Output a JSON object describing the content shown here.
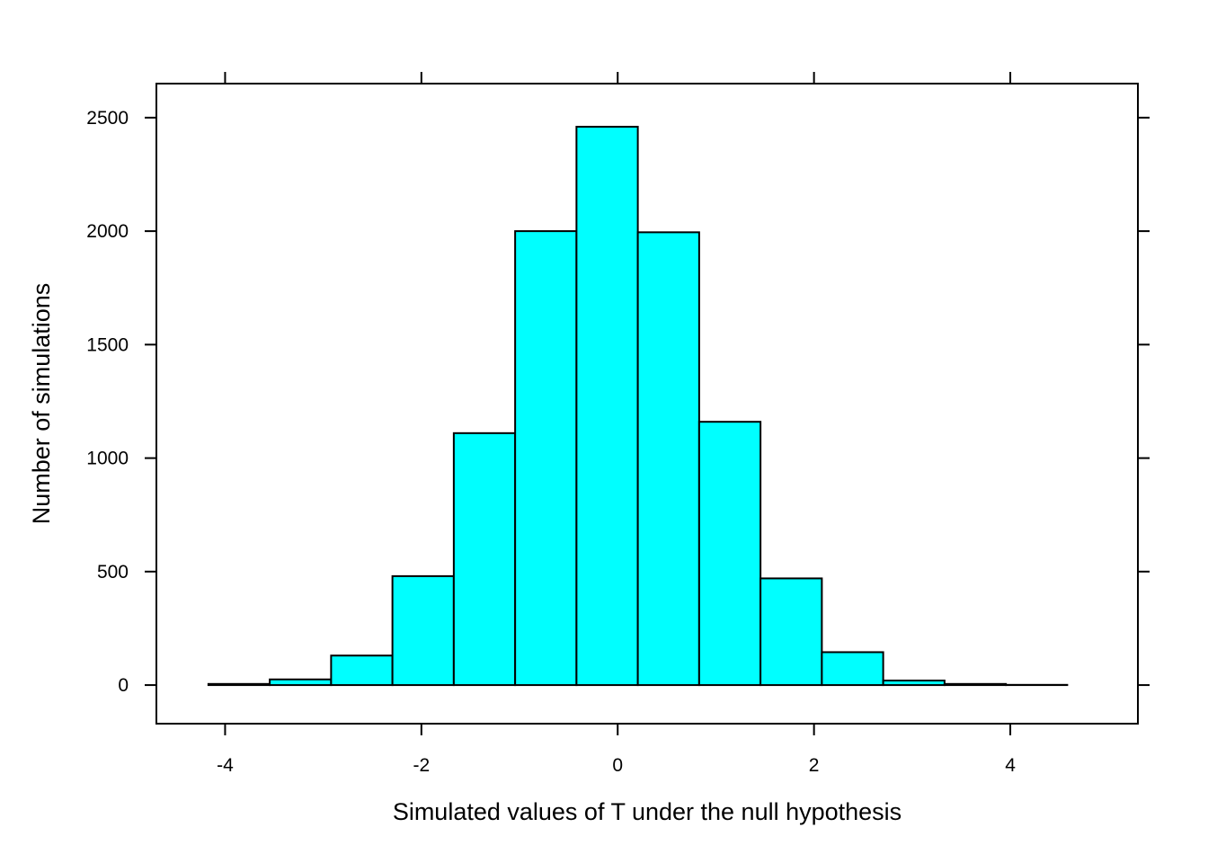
{
  "chart_data": {
    "type": "bar",
    "xlabel": "Simulated values of T under the null hypothesis",
    "ylabel": "Number of simulations",
    "xlim": [
      -4.7,
      5.3
    ],
    "ylim": [
      -170,
      2650
    ],
    "x_ticks": [
      -4,
      -2,
      0,
      2,
      4
    ],
    "y_ticks": [
      0,
      500,
      1000,
      1500,
      2000,
      2500
    ],
    "bins": [
      {
        "x0": -4.17,
        "x1": -3.545,
        "count": 5
      },
      {
        "x0": -3.545,
        "x1": -2.92,
        "count": 25
      },
      {
        "x0": -2.92,
        "x1": -2.295,
        "count": 130
      },
      {
        "x0": -2.295,
        "x1": -1.67,
        "count": 480
      },
      {
        "x0": -1.67,
        "x1": -1.045,
        "count": 1110
      },
      {
        "x0": -1.045,
        "x1": -0.42,
        "count": 2000
      },
      {
        "x0": -0.42,
        "x1": 0.205,
        "count": 2460
      },
      {
        "x0": 0.205,
        "x1": 0.83,
        "count": 1995
      },
      {
        "x0": 0.83,
        "x1": 1.455,
        "count": 1160
      },
      {
        "x0": 1.455,
        "x1": 2.08,
        "count": 470
      },
      {
        "x0": 2.08,
        "x1": 2.705,
        "count": 145
      },
      {
        "x0": 2.705,
        "x1": 3.33,
        "count": 20
      },
      {
        "x0": 3.33,
        "x1": 3.955,
        "count": 5
      },
      {
        "x0": 3.955,
        "x1": 4.58,
        "count": 1
      }
    ],
    "colors": {
      "bar_fill": "#00FFFF",
      "bar_stroke": "#000000"
    },
    "grid": false,
    "legend": "none"
  }
}
